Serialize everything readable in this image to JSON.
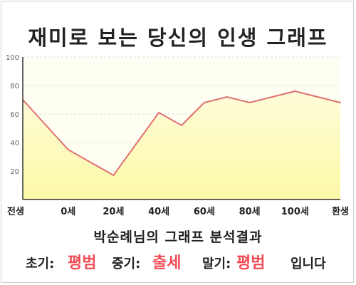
{
  "title": "재미로 보는 당신의 인생 그래프",
  "subtitle": "박순례님의 그래프 분석결과",
  "result": {
    "early_label": "초기:",
    "early_value": "평범",
    "middle_label": "중기:",
    "middle_value": "출세",
    "late_label": "말기:",
    "late_value": "평범",
    "ending": "입니다"
  },
  "colors": {
    "line": "#e07070",
    "area_top": "#fdfcd8",
    "area_bottom": "#fdf9a8",
    "plot_bg": "#fefef2",
    "highlight": "#f04d56"
  },
  "chart_data": {
    "type": "area",
    "categories": [
      "전생",
      "0세",
      "20세",
      "40세",
      "60세",
      "80세",
      "100세",
      "환생"
    ],
    "x": [
      -20,
      0,
      20,
      40,
      50,
      60,
      70,
      80,
      90,
      100,
      120
    ],
    "y": [
      70,
      35,
      17,
      61,
      52,
      68,
      72,
      68,
      72,
      76,
      68
    ],
    "ylim": [
      0,
      100
    ],
    "yticks": [
      20,
      40,
      60,
      80,
      100
    ],
    "xlim": [
      -20,
      120
    ],
    "grid": true,
    "legend": "none"
  }
}
